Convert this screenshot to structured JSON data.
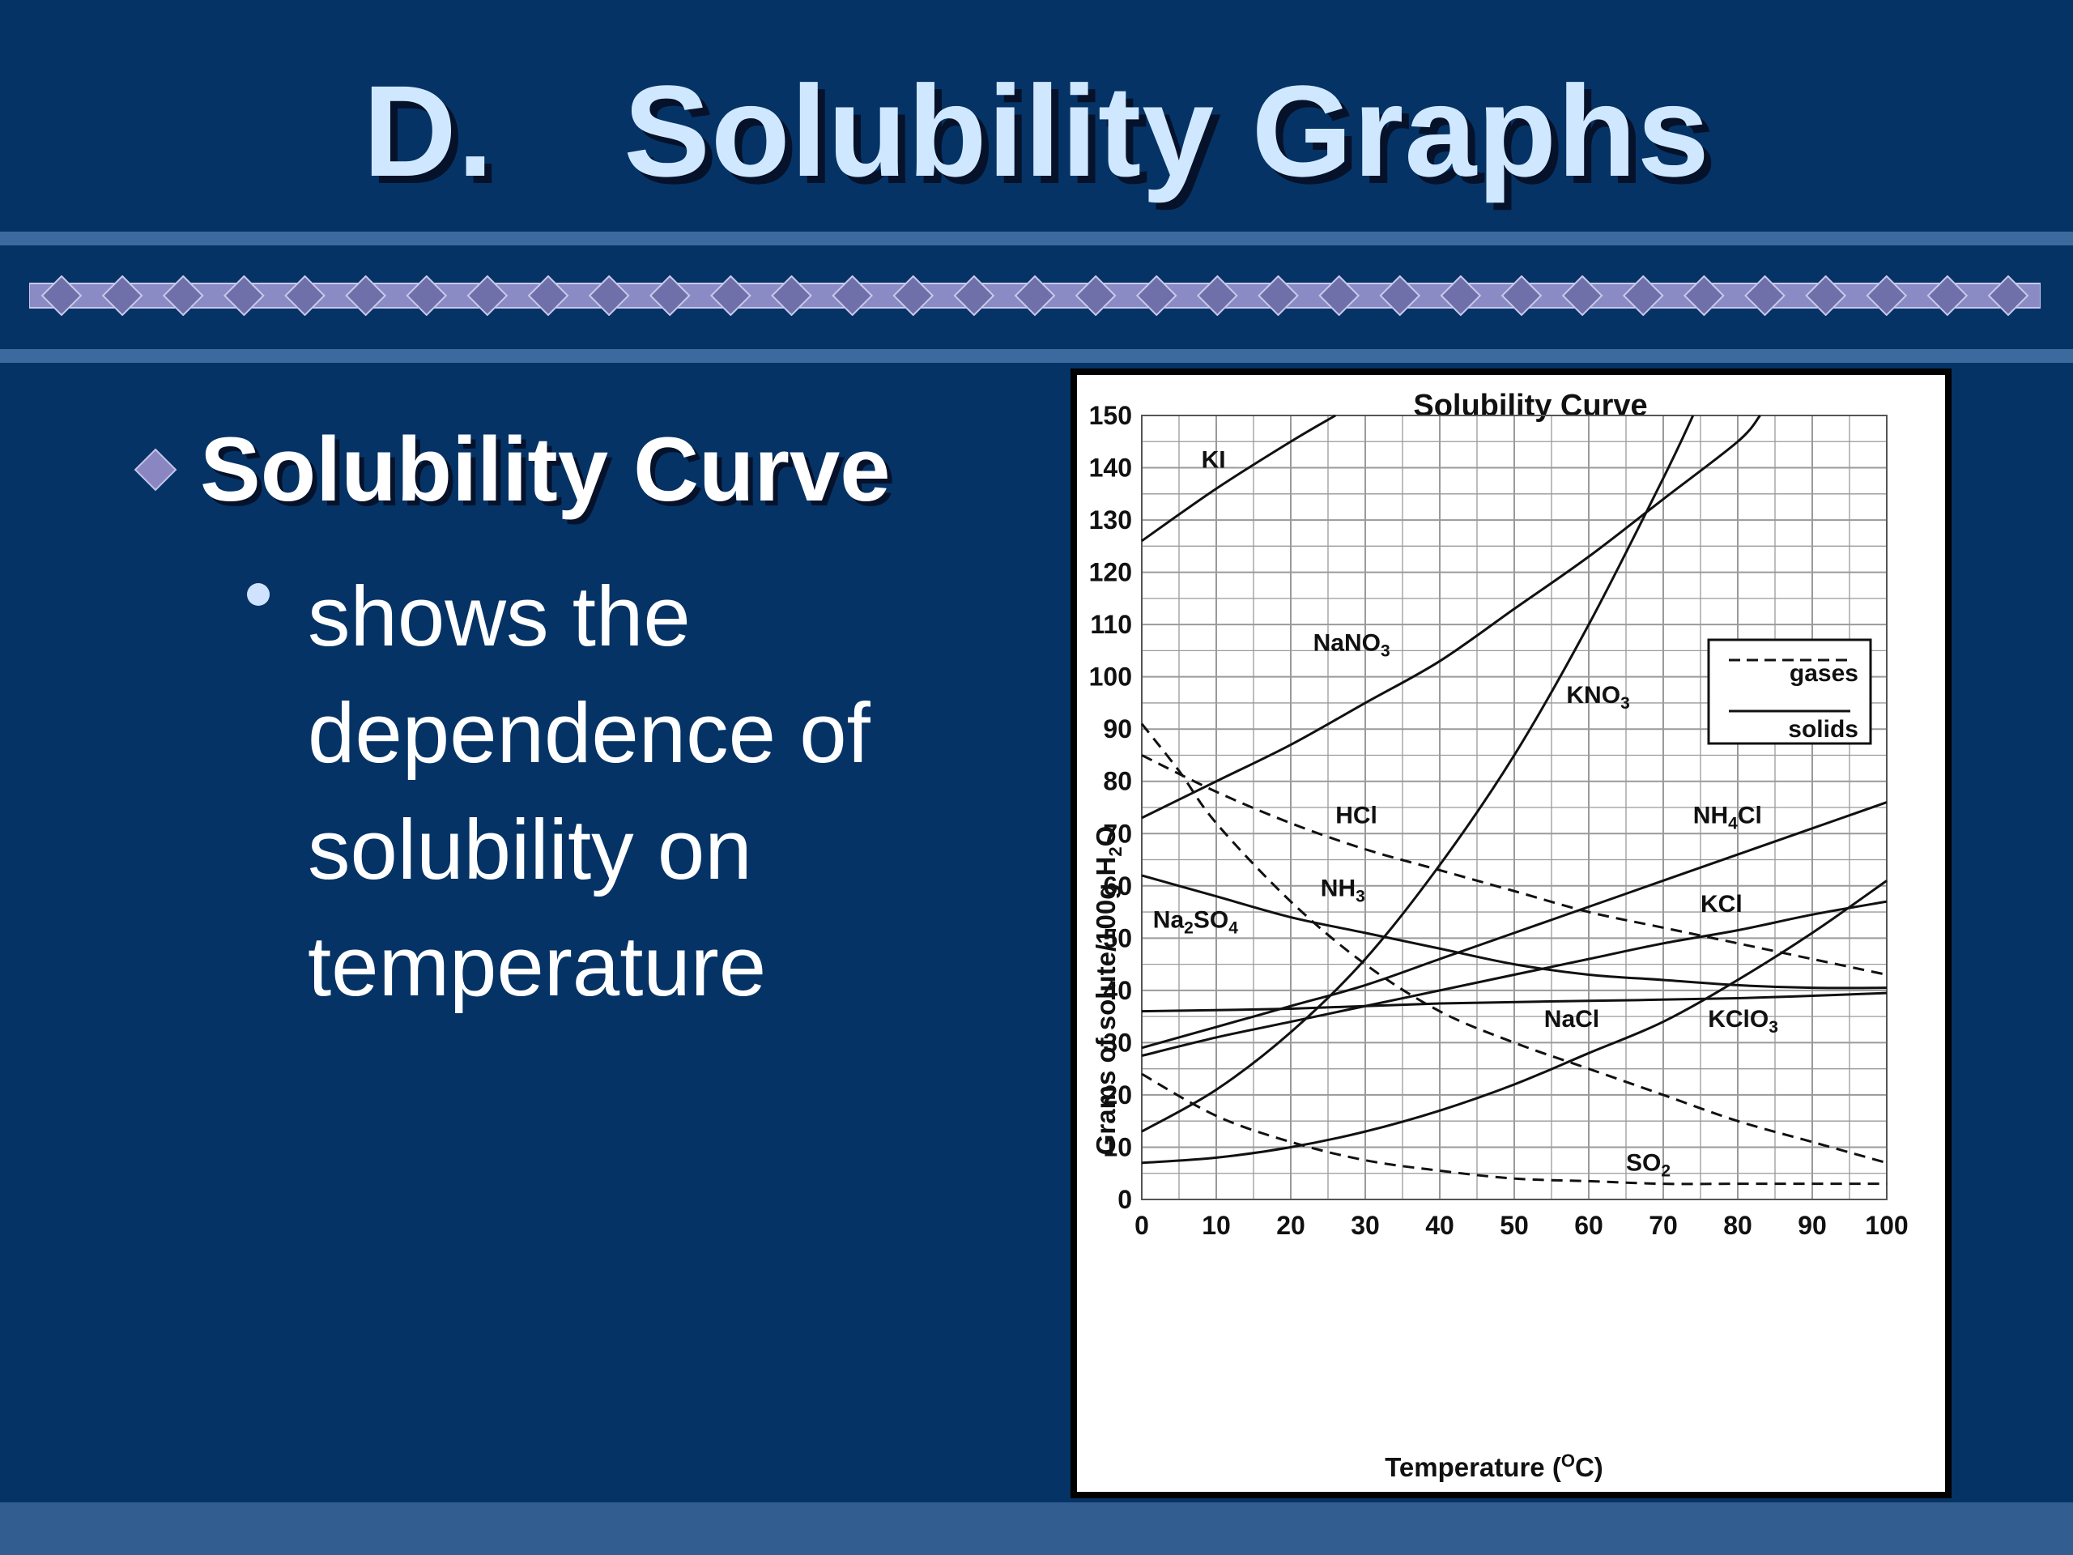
{
  "slide": {
    "title_letter": "D.",
    "title_text": "Solubility Graphs",
    "bullet": "Solubility Curve",
    "sub_bullet": "shows the dependence of solubility on temperature"
  },
  "colors": {
    "background": "#053366",
    "title_text": "#cfe8ff",
    "band": "#3c6a9e",
    "diamond": "#6f6faa"
  },
  "chart_data": {
    "type": "line",
    "title": "Solubility Curve",
    "xlabel": "Temperature (",
    "xlabel_sup": "O",
    "xlabel_end": "C)",
    "ylabel": "Grams of solute/100g H",
    "ylabel_sub": "2",
    "ylabel_end": "O",
    "xlim": [
      0,
      100
    ],
    "ylim": [
      0,
      150
    ],
    "x_ticks": [
      0,
      10,
      20,
      30,
      40,
      50,
      60,
      70,
      80,
      90,
      100
    ],
    "y_ticks": [
      0,
      10,
      20,
      30,
      40,
      50,
      60,
      70,
      80,
      90,
      100,
      110,
      120,
      130,
      140,
      150
    ],
    "grid": true,
    "legend": {
      "position": "top-right",
      "entries": [
        {
          "label": "gases",
          "style": "dashed"
        },
        {
          "label": "solids",
          "style": "solid"
        }
      ]
    },
    "series": [
      {
        "name": "KI",
        "dash": false,
        "x": [
          0,
          10,
          20,
          26
        ],
        "y": [
          126,
          136,
          145,
          150
        ]
      },
      {
        "name": "NaNO3",
        "dash": false,
        "x": [
          0,
          10,
          20,
          30,
          40,
          50,
          60,
          70,
          80,
          83
        ],
        "y": [
          73,
          80,
          87,
          95,
          103,
          113,
          123,
          134,
          145,
          150
        ]
      },
      {
        "name": "KNO3",
        "dash": false,
        "x": [
          0,
          10,
          20,
          30,
          40,
          50,
          60,
          70,
          74
        ],
        "y": [
          13,
          21,
          32,
          46,
          64,
          85,
          110,
          138,
          150
        ]
      },
      {
        "name": "NH4Cl",
        "dash": false,
        "x": [
          0,
          10,
          20,
          30,
          40,
          50,
          60,
          70,
          80,
          90,
          100
        ],
        "y": [
          29,
          33,
          37,
          41,
          46,
          51,
          56,
          61,
          66,
          71,
          76
        ]
      },
      {
        "name": "KCl",
        "dash": false,
        "x": [
          0,
          10,
          20,
          30,
          40,
          50,
          60,
          70,
          80,
          90,
          100
        ],
        "y": [
          27.5,
          31,
          34,
          37,
          40,
          43,
          46,
          49,
          51.5,
          54.5,
          57
        ]
      },
      {
        "name": "NaCl",
        "dash": false,
        "x": [
          0,
          20,
          40,
          60,
          80,
          100
        ],
        "y": [
          36,
          36.5,
          37.5,
          38,
          38.5,
          39.5
        ]
      },
      {
        "name": "Na2SO4",
        "dash": false,
        "x": [
          0,
          10,
          20,
          30,
          40,
          50,
          60,
          70,
          80,
          90,
          100
        ],
        "y": [
          62,
          58,
          54,
          51,
          48,
          45,
          43,
          42,
          41,
          40.5,
          40.5
        ]
      },
      {
        "name": "KClO3",
        "dash": false,
        "x": [
          0,
          10,
          20,
          30,
          40,
          50,
          60,
          70,
          80,
          90,
          100
        ],
        "y": [
          7,
          8,
          10,
          13,
          17,
          22,
          28,
          34,
          42,
          51,
          61
        ]
      },
      {
        "name": "HCl",
        "dash": true,
        "x": [
          0,
          10,
          20,
          30,
          40,
          50,
          60,
          70,
          80,
          90,
          100
        ],
        "y": [
          85,
          78,
          72,
          67,
          63,
          59,
          55,
          52,
          49,
          46,
          43
        ]
      },
      {
        "name": "NH3",
        "dash": true,
        "x": [
          0,
          5,
          10,
          20,
          30,
          40,
          50,
          60,
          70,
          80,
          90,
          100
        ],
        "y": [
          91,
          82,
          72,
          57,
          45,
          36,
          30,
          25,
          20,
          15,
          11,
          7
        ]
      },
      {
        "name": "SO2",
        "dash": true,
        "x": [
          0,
          10,
          20,
          30,
          40,
          50,
          60,
          70,
          80,
          90,
          100
        ],
        "y": [
          24,
          16,
          11,
          7.5,
          5.5,
          4,
          3.5,
          3,
          3,
          3,
          3
        ]
      }
    ],
    "labels": [
      {
        "text": "KI",
        "x": 8,
        "y": 140
      },
      {
        "text": "NaNO",
        "sub": "3",
        "x": 23,
        "y": 105
      },
      {
        "text": "KNO",
        "sub": "3",
        "x": 57,
        "y": 95
      },
      {
        "text": "NH",
        "sub": "4",
        "tail": "Cl",
        "x": 74,
        "y": 72
      },
      {
        "text": "HCl",
        "x": 26,
        "y": 72
      },
      {
        "text": "NH",
        "sub": "3",
        "x": 24,
        "y": 58
      },
      {
        "text": "Na",
        "sub": "2",
        "tail": "SO",
        "sub2": "4",
        "x": 1.5,
        "y": 52
      },
      {
        "text": "KCl",
        "x": 75,
        "y": 55
      },
      {
        "text": "NaCl",
        "x": 54,
        "y": 33
      },
      {
        "text": "KClO",
        "sub": "3",
        "x": 76,
        "y": 33
      },
      {
        "text": "SO",
        "sub": "2",
        "x": 65,
        "y": 5.5
      }
    ]
  }
}
